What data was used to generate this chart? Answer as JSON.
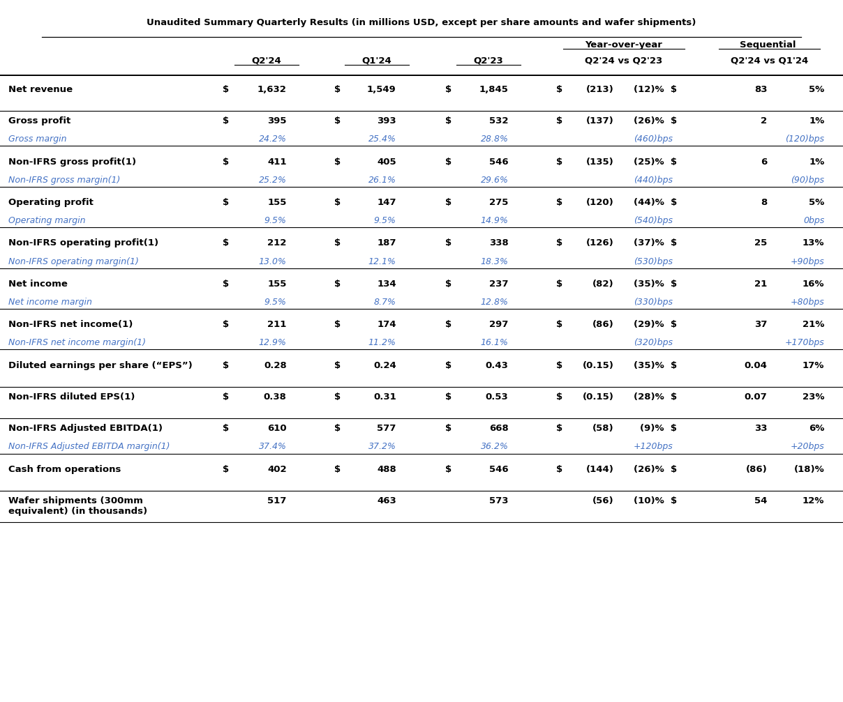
{
  "title": "Unaudited Summary Quarterly Results (in millions USD, except per share amounts and wafer shipments)",
  "background_color": "#ffffff",
  "text_color": "#000000",
  "italic_color": "#4472c4",
  "rows": [
    {
      "label": "Net revenue",
      "bold": true,
      "has_dollar": true,
      "q2_24": "1,632",
      "q1_24": "1,549",
      "q2_23": "1,845",
      "yoy_dollar": "(213)",
      "yoy_pct": "(12)%",
      "seq_dollar": "83",
      "seq_pct": "5%",
      "sub_label": null
    },
    {
      "label": "Gross profit",
      "bold": true,
      "has_dollar": true,
      "q2_24": "395",
      "q1_24": "393",
      "q2_23": "532",
      "yoy_dollar": "(137)",
      "yoy_pct": "(26)%",
      "seq_dollar": "2",
      "seq_pct": "1%",
      "sub_label": "Gross margin",
      "sub_q2_24": "24.2%",
      "sub_q1_24": "25.4%",
      "sub_q2_23": "28.8%",
      "sub_yoy": "(460)bps",
      "sub_seq": "(120)bps"
    },
    {
      "label": "Non-IFRS gross profit(1)",
      "bold": true,
      "has_dollar": true,
      "q2_24": "411",
      "q1_24": "405",
      "q2_23": "546",
      "yoy_dollar": "(135)",
      "yoy_pct": "(25)%",
      "seq_dollar": "6",
      "seq_pct": "1%",
      "sub_label": "Non-IFRS gross margin(1)",
      "sub_q2_24": "25.2%",
      "sub_q1_24": "26.1%",
      "sub_q2_23": "29.6%",
      "sub_yoy": "(440)bps",
      "sub_seq": "(90)bps"
    },
    {
      "label": "Operating profit",
      "bold": true,
      "has_dollar": true,
      "q2_24": "155",
      "q1_24": "147",
      "q2_23": "275",
      "yoy_dollar": "(120)",
      "yoy_pct": "(44)%",
      "seq_dollar": "8",
      "seq_pct": "5%",
      "sub_label": "Operating margin",
      "sub_q2_24": "9.5%",
      "sub_q1_24": "9.5%",
      "sub_q2_23": "14.9%",
      "sub_yoy": "(540)bps",
      "sub_seq": "0bps"
    },
    {
      "label": "Non-IFRS operating profit(1)",
      "bold": true,
      "has_dollar": true,
      "q2_24": "212",
      "q1_24": "187",
      "q2_23": "338",
      "yoy_dollar": "(126)",
      "yoy_pct": "(37)%",
      "seq_dollar": "25",
      "seq_pct": "13%",
      "sub_label": "Non-IFRS operating margin(1)",
      "sub_q2_24": "13.0%",
      "sub_q1_24": "12.1%",
      "sub_q2_23": "18.3%",
      "sub_yoy": "(530)bps",
      "sub_seq": "+90bps"
    },
    {
      "label": "Net income",
      "bold": true,
      "has_dollar": true,
      "q2_24": "155",
      "q1_24": "134",
      "q2_23": "237",
      "yoy_dollar": "(82)",
      "yoy_pct": "(35)%",
      "seq_dollar": "21",
      "seq_pct": "16%",
      "sub_label": "Net income margin",
      "sub_q2_24": "9.5%",
      "sub_q1_24": "8.7%",
      "sub_q2_23": "12.8%",
      "sub_yoy": "(330)bps",
      "sub_seq": "+80bps"
    },
    {
      "label": "Non-IFRS net income(1)",
      "bold": true,
      "has_dollar": true,
      "q2_24": "211",
      "q1_24": "174",
      "q2_23": "297",
      "yoy_dollar": "(86)",
      "yoy_pct": "(29)%",
      "seq_dollar": "37",
      "seq_pct": "21%",
      "sub_label": "Non-IFRS net income margin(1)",
      "sub_q2_24": "12.9%",
      "sub_q1_24": "11.2%",
      "sub_q2_23": "16.1%",
      "sub_yoy": "(320)bps",
      "sub_seq": "+170bps"
    },
    {
      "label": "Diluted earnings per share (“EPS”)",
      "bold": true,
      "has_dollar": true,
      "q2_24": "0.28",
      "q1_24": "0.24",
      "q2_23": "0.43",
      "yoy_dollar": "(0.15)",
      "yoy_pct": "(35)%",
      "seq_dollar": "0.04",
      "seq_pct": "17%",
      "sub_label": null
    },
    {
      "label": "Non-IFRS diluted EPS(1)",
      "bold": true,
      "has_dollar": true,
      "q2_24": "0.38",
      "q1_24": "0.31",
      "q2_23": "0.53",
      "yoy_dollar": "(0.15)",
      "yoy_pct": "(28)%",
      "seq_dollar": "0.07",
      "seq_pct": "23%",
      "sub_label": null
    },
    {
      "label": "Non-IFRS Adjusted EBITDA(1)",
      "bold": true,
      "has_dollar": true,
      "q2_24": "610",
      "q1_24": "577",
      "q2_23": "668",
      "yoy_dollar": "(58)",
      "yoy_pct": "(9)%",
      "seq_dollar": "33",
      "seq_pct": "6%",
      "sub_label": "Non-IFRS Adjusted EBITDA margin(1)",
      "sub_q2_24": "37.4%",
      "sub_q1_24": "37.2%",
      "sub_q2_23": "36.2%",
      "sub_yoy": "+120bps",
      "sub_seq": "+20bps"
    },
    {
      "label": "Cash from operations",
      "bold": true,
      "has_dollar": true,
      "q2_24": "402",
      "q1_24": "488",
      "q2_23": "546",
      "yoy_dollar": "(144)",
      "yoy_pct": "(26)%",
      "seq_dollar": "(86)",
      "seq_pct": "(18)%",
      "sub_label": null
    },
    {
      "label": "Wafer shipments (300mm\nequivalent) (in thousands)",
      "bold": true,
      "has_dollar": false,
      "q2_24": "517",
      "q1_24": "463",
      "q2_23": "573",
      "yoy_dollar": "(56)",
      "yoy_pct": "(10)%",
      "seq_dollar": "54",
      "seq_pct": "12%",
      "sub_label": null
    }
  ]
}
